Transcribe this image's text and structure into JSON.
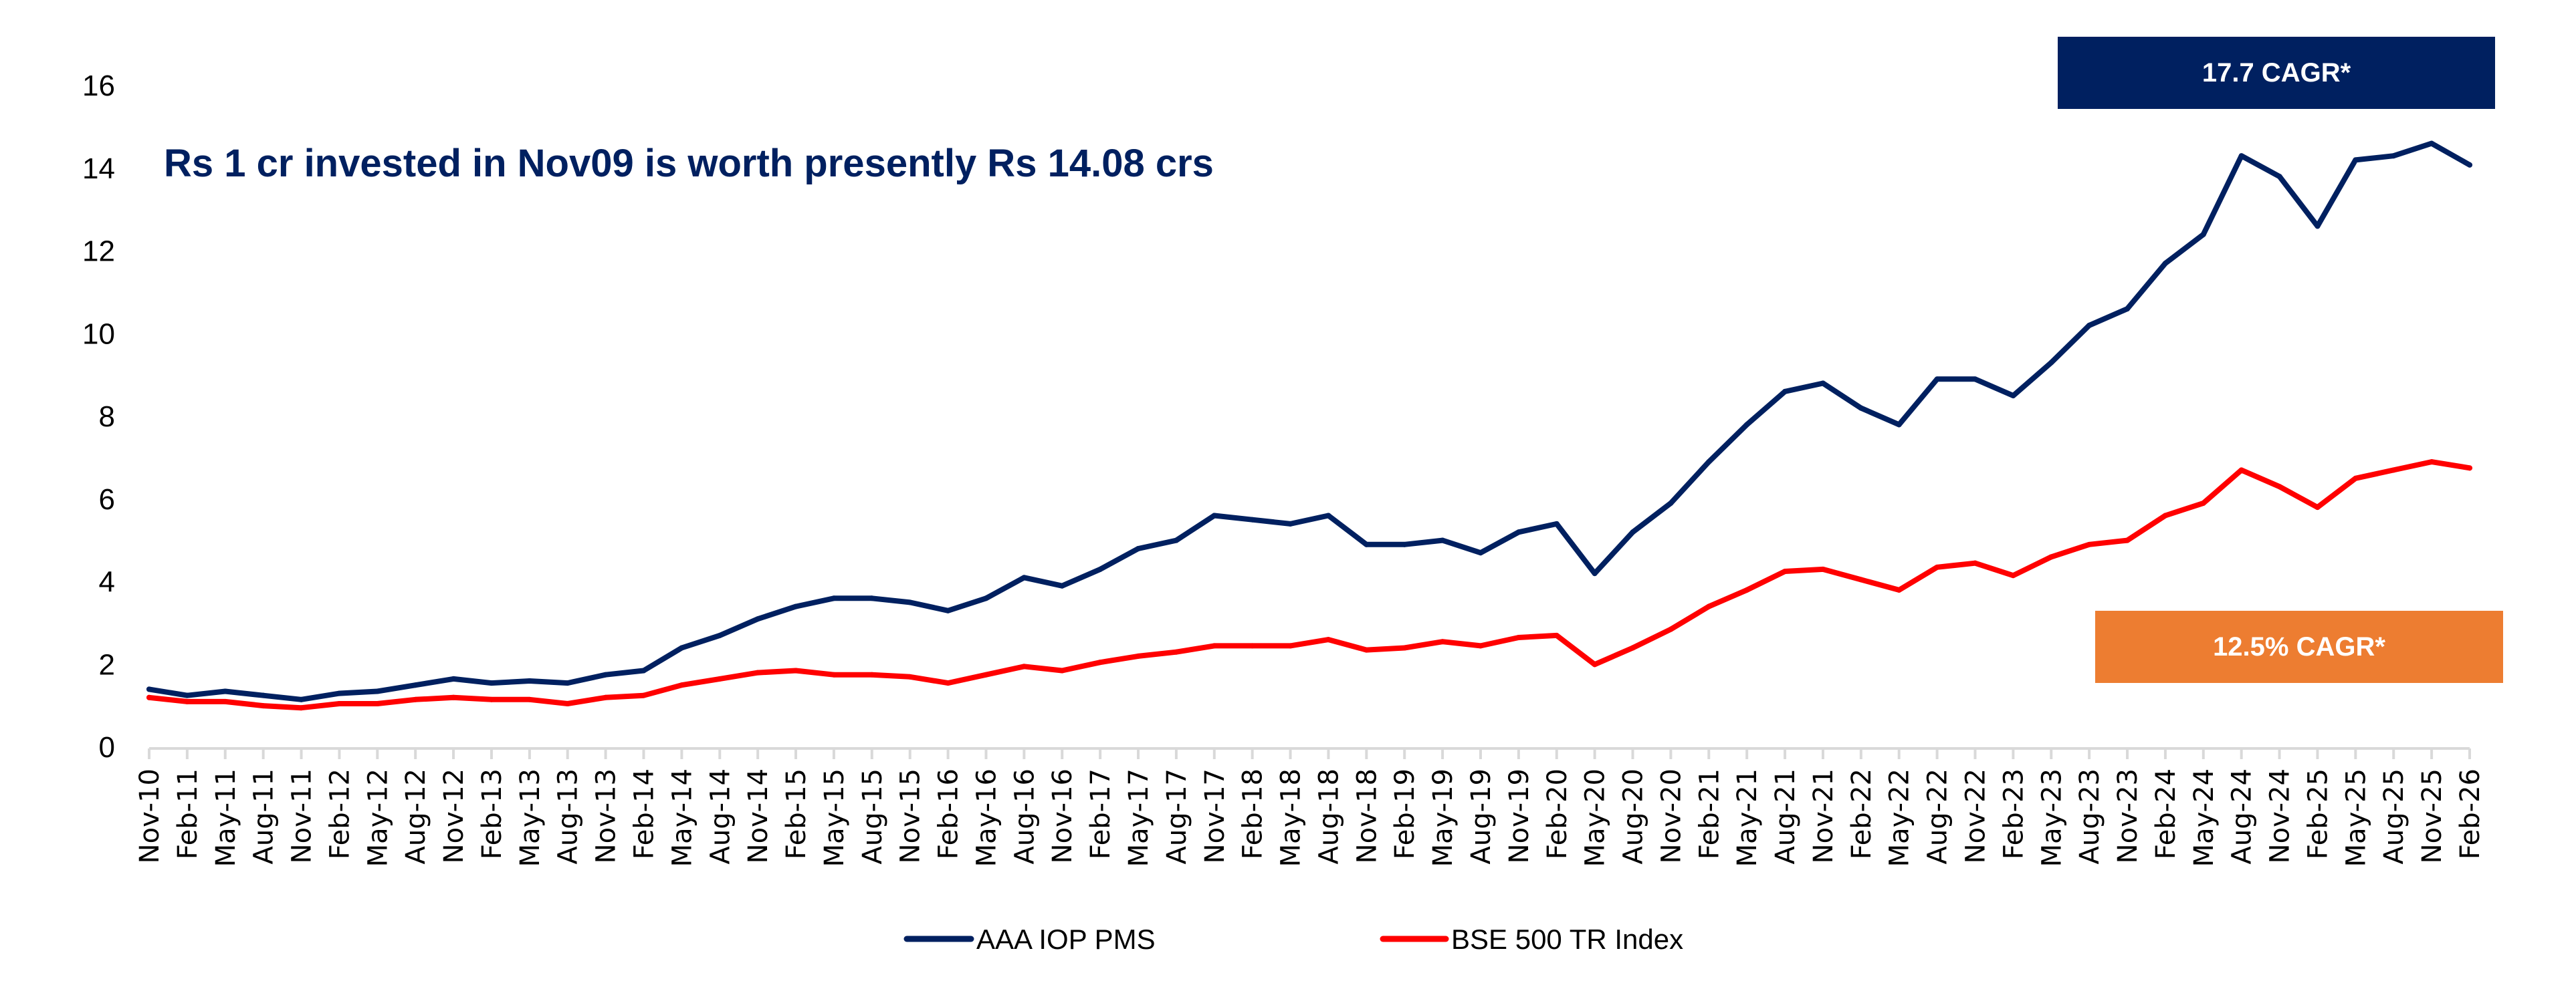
{
  "chart_data": {
    "type": "line",
    "title": "Rs 1 cr invested in Nov09 is worth presently Rs 14.08 crs",
    "xlabel": "",
    "ylabel": "",
    "ylim": [
      0,
      16
    ],
    "yticks": [
      "0",
      "2",
      "4",
      "6",
      "8",
      "10",
      "12",
      "14",
      "16"
    ],
    "grid": false,
    "legend_position": "bottom",
    "categories": [
      "Nov-10",
      "Feb-11",
      "May-11",
      "Aug-11",
      "Nov-11",
      "Feb-12",
      "May-12",
      "Aug-12",
      "Nov-12",
      "Feb-13",
      "May-13",
      "Aug-13",
      "Nov-13",
      "Feb-14",
      "May-14",
      "Aug-14",
      "Nov-14",
      "Feb-15",
      "May-15",
      "Aug-15",
      "Nov-15",
      "Feb-16",
      "May-16",
      "Aug-16",
      "Nov-16",
      "Feb-17",
      "May-17",
      "Aug-17",
      "Nov-17",
      "Feb-18",
      "May-18",
      "Aug-18",
      "Nov-18",
      "Feb-19",
      "May-19",
      "Aug-19",
      "Nov-19",
      "Feb-20",
      "May-20",
      "Aug-20",
      "Nov-20",
      "Feb-21",
      "May-21",
      "Aug-21",
      "Nov-21",
      "Feb-22",
      "May-22",
      "Aug-22",
      "Nov-22",
      "Feb-23",
      "May-23",
      "Aug-23",
      "Nov-23",
      "Feb-24",
      "May-24",
      "Aug-24",
      "Nov-24",
      "Feb-25",
      "May-25",
      "Aug-25",
      "Nov-25",
      "Feb-26"
    ],
    "series": [
      {
        "name": "AAA IOP PMS",
        "color": "#002060",
        "values": [
          1.4,
          1.25,
          1.35,
          1.25,
          1.15,
          1.3,
          1.35,
          1.5,
          1.65,
          1.55,
          1.6,
          1.55,
          1.75,
          1.85,
          2.4,
          2.7,
          3.1,
          3.4,
          3.6,
          3.6,
          3.5,
          3.3,
          3.6,
          4.1,
          3.9,
          4.3,
          4.8,
          5.0,
          5.6,
          5.5,
          5.4,
          5.6,
          4.9,
          4.9,
          5.0,
          4.7,
          5.2,
          5.4,
          4.2,
          5.2,
          5.9,
          6.9,
          7.8,
          8.6,
          8.8,
          8.2,
          7.8,
          8.9,
          8.9,
          8.5,
          9.3,
          10.2,
          10.6,
          11.7,
          12.4,
          14.3,
          13.8,
          12.6,
          14.2,
          14.3,
          14.6,
          14.08
        ]
      },
      {
        "name": "BSE 500 TR Index",
        "color": "#FF0000",
        "values": [
          1.2,
          1.1,
          1.1,
          1.0,
          0.95,
          1.05,
          1.05,
          1.15,
          1.2,
          1.15,
          1.15,
          1.05,
          1.2,
          1.25,
          1.5,
          1.65,
          1.8,
          1.85,
          1.75,
          1.75,
          1.7,
          1.55,
          1.75,
          1.95,
          1.85,
          2.05,
          2.2,
          2.3,
          2.45,
          2.45,
          2.45,
          2.6,
          2.35,
          2.4,
          2.55,
          2.45,
          2.65,
          2.7,
          2.0,
          2.4,
          2.85,
          3.4,
          3.8,
          4.25,
          4.3,
          4.05,
          3.8,
          4.35,
          4.45,
          4.15,
          4.6,
          4.9,
          5.0,
          5.6,
          5.9,
          6.7,
          6.3,
          5.8,
          6.5,
          6.7,
          6.9,
          6.75
        ]
      }
    ],
    "annotations": [
      {
        "name": "aaa-cagr",
        "text": "17.7 CAGR*",
        "color": "#002060"
      },
      {
        "name": "bse-cagr",
        "text": "12.5% CAGR*",
        "color": "#ED7D31"
      }
    ]
  }
}
